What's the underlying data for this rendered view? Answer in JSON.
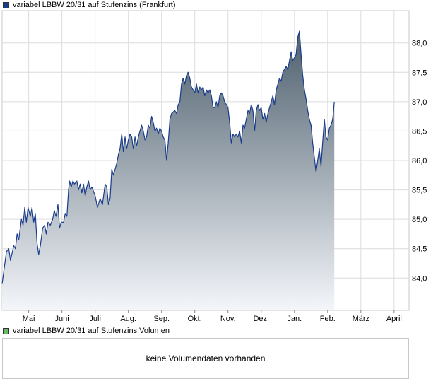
{
  "legend": {
    "price_label": "variabel LBBW 20/31 auf Stufenzins (Frankfurt)",
    "price_color": "#1a3c8c",
    "volume_label": "variabel LBBW 20/31 auf Stufenzins Volumen",
    "volume_color": "#66bb66"
  },
  "volume_panel": {
    "message": "keine Volumendaten vorhanden"
  },
  "chart_data": {
    "type": "area",
    "title": "variabel LBBW 20/31 auf Stufenzins (Frankfurt)",
    "y_ticks": [
      "84,0",
      "84,5",
      "85,0",
      "85,5",
      "86,0",
      "86,5",
      "87,0",
      "87,5",
      "88,0"
    ],
    "ylim": [
      83.45,
      88.55
    ],
    "x_ticks": [
      {
        "label": "Mai",
        "t": 0.5
      },
      {
        "label": "Juni",
        "t": 1.5
      },
      {
        "label": "Juli",
        "t": 2.5
      },
      {
        "label": "Aug.",
        "t": 3.5
      },
      {
        "label": "Sep.",
        "t": 4.5
      },
      {
        "label": "Okt.",
        "t": 5.5
      },
      {
        "label": "Nov.",
        "t": 6.5
      },
      {
        "label": "Dez.",
        "t": 7.5
      },
      {
        "label": "Jan.",
        "t": 8.5
      },
      {
        "label": "Feb.",
        "t": 9.5
      },
      {
        "label": "März",
        "t": 10.5
      },
      {
        "label": "April",
        "t": 11.5
      }
    ],
    "xlim": [
      -0.3,
      11.95
    ],
    "grid": true,
    "series": [
      {
        "name": "variabel LBBW 20/31 auf Stufenzins (Frankfurt)",
        "color": "#1a3c8c",
        "points": [
          [
            -0.3,
            83.9
          ],
          [
            -0.17,
            84.45
          ],
          [
            -0.1,
            84.5
          ],
          [
            -0.05,
            84.3
          ],
          [
            0.05,
            84.55
          ],
          [
            0.1,
            84.5
          ],
          [
            0.15,
            84.75
          ],
          [
            0.2,
            84.65
          ],
          [
            0.28,
            85.0
          ],
          [
            0.33,
            84.9
          ],
          [
            0.38,
            85.2
          ],
          [
            0.43,
            84.95
          ],
          [
            0.48,
            85.2
          ],
          [
            0.55,
            85.05
          ],
          [
            0.6,
            85.2
          ],
          [
            0.65,
            84.95
          ],
          [
            0.7,
            85.1
          ],
          [
            0.75,
            84.6
          ],
          [
            0.8,
            84.4
          ],
          [
            0.85,
            84.55
          ],
          [
            0.92,
            84.85
          ],
          [
            0.98,
            84.9
          ],
          [
            1.03,
            84.75
          ],
          [
            1.08,
            84.95
          ],
          [
            1.15,
            84.9
          ],
          [
            1.22,
            85.0
          ],
          [
            1.27,
            85.15
          ],
          [
            1.32,
            85.05
          ],
          [
            1.38,
            85.25
          ],
          [
            1.43,
            84.85
          ],
          [
            1.48,
            84.95
          ],
          [
            1.55,
            84.95
          ],
          [
            1.6,
            85.1
          ],
          [
            1.65,
            85.05
          ],
          [
            1.7,
            85.5
          ],
          [
            1.73,
            85.65
          ],
          [
            1.78,
            85.55
          ],
          [
            1.83,
            85.65
          ],
          [
            1.88,
            85.6
          ],
          [
            1.95,
            85.65
          ],
          [
            2.0,
            85.5
          ],
          [
            2.05,
            85.6
          ],
          [
            2.1,
            85.45
          ],
          [
            2.15,
            85.6
          ],
          [
            2.2,
            85.4
          ],
          [
            2.25,
            85.55
          ],
          [
            2.3,
            85.65
          ],
          [
            2.35,
            85.5
          ],
          [
            2.4,
            85.55
          ],
          [
            2.5,
            85.4
          ],
          [
            2.57,
            85.2
          ],
          [
            2.65,
            85.35
          ],
          [
            2.72,
            85.25
          ],
          [
            2.8,
            85.6
          ],
          [
            2.85,
            85.55
          ],
          [
            2.9,
            85.25
          ],
          [
            2.95,
            85.35
          ],
          [
            3.0,
            85.85
          ],
          [
            3.05,
            85.75
          ],
          [
            3.1,
            85.85
          ],
          [
            3.15,
            85.95
          ],
          [
            3.2,
            86.1
          ],
          [
            3.25,
            86.2
          ],
          [
            3.3,
            86.45
          ],
          [
            3.35,
            86.15
          ],
          [
            3.4,
            86.4
          ],
          [
            3.45,
            86.2
          ],
          [
            3.5,
            86.35
          ],
          [
            3.55,
            86.45
          ],
          [
            3.6,
            86.4
          ],
          [
            3.65,
            86.2
          ],
          [
            3.7,
            86.4
          ],
          [
            3.75,
            86.25
          ],
          [
            3.8,
            86.4
          ],
          [
            3.85,
            86.5
          ],
          [
            3.9,
            86.6
          ],
          [
            3.95,
            86.5
          ],
          [
            4.0,
            86.35
          ],
          [
            4.05,
            86.4
          ],
          [
            4.1,
            86.6
          ],
          [
            4.15,
            86.55
          ],
          [
            4.2,
            86.75
          ],
          [
            4.25,
            86.65
          ],
          [
            4.3,
            86.5
          ],
          [
            4.35,
            86.55
          ],
          [
            4.4,
            86.45
          ],
          [
            4.45,
            86.55
          ],
          [
            4.5,
            86.5
          ],
          [
            4.55,
            86.4
          ],
          [
            4.6,
            86.35
          ],
          [
            4.65,
            86.0
          ],
          [
            4.7,
            86.3
          ],
          [
            4.75,
            86.7
          ],
          [
            4.8,
            86.8
          ],
          [
            4.9,
            86.85
          ],
          [
            4.95,
            86.8
          ],
          [
            5.0,
            86.95
          ],
          [
            5.05,
            87.0
          ],
          [
            5.1,
            87.3
          ],
          [
            5.15,
            87.4
          ],
          [
            5.2,
            87.3
          ],
          [
            5.25,
            87.45
          ],
          [
            5.3,
            87.5
          ],
          [
            5.35,
            87.4
          ],
          [
            5.4,
            87.25
          ],
          [
            5.45,
            87.2
          ],
          [
            5.5,
            87.15
          ],
          [
            5.55,
            87.3
          ],
          [
            5.6,
            87.15
          ],
          [
            5.65,
            87.25
          ],
          [
            5.7,
            87.2
          ],
          [
            5.75,
            87.25
          ],
          [
            5.8,
            87.1
          ],
          [
            5.85,
            87.2
          ],
          [
            5.9,
            87.15
          ],
          [
            5.95,
            87.2
          ],
          [
            6.0,
            87.1
          ],
          [
            6.05,
            86.9
          ],
          [
            6.1,
            86.9
          ],
          [
            6.15,
            87.0
          ],
          [
            6.2,
            86.9
          ],
          [
            6.25,
            87.1
          ],
          [
            6.3,
            87.15
          ],
          [
            6.35,
            87.1
          ],
          [
            6.4,
            87.0
          ],
          [
            6.45,
            86.95
          ],
          [
            6.5,
            86.9
          ],
          [
            6.55,
            86.65
          ],
          [
            6.6,
            86.3
          ],
          [
            6.65,
            86.45
          ],
          [
            6.7,
            86.4
          ],
          [
            6.75,
            86.45
          ],
          [
            6.8,
            86.4
          ],
          [
            6.85,
            86.5
          ],
          [
            6.9,
            86.3
          ],
          [
            6.95,
            86.6
          ],
          [
            7.0,
            86.55
          ],
          [
            7.05,
            86.7
          ],
          [
            7.1,
            86.85
          ],
          [
            7.15,
            86.8
          ],
          [
            7.2,
            86.95
          ],
          [
            7.25,
            86.85
          ],
          [
            7.3,
            86.5
          ],
          [
            7.35,
            86.85
          ],
          [
            7.4,
            86.95
          ],
          [
            7.45,
            86.85
          ],
          [
            7.5,
            86.9
          ],
          [
            7.55,
            86.7
          ],
          [
            7.6,
            86.8
          ],
          [
            7.65,
            86.65
          ],
          [
            7.7,
            86.8
          ],
          [
            7.75,
            86.9
          ],
          [
            7.8,
            87.0
          ],
          [
            7.85,
            87.1
          ],
          [
            7.9,
            86.95
          ],
          [
            7.95,
            87.2
          ],
          [
            8.0,
            87.3
          ],
          [
            8.05,
            87.4
          ],
          [
            8.1,
            87.35
          ],
          [
            8.15,
            87.5
          ],
          [
            8.2,
            87.55
          ],
          [
            8.25,
            87.6
          ],
          [
            8.3,
            87.55
          ],
          [
            8.35,
            87.7
          ],
          [
            8.4,
            87.85
          ],
          [
            8.45,
            87.7
          ],
          [
            8.5,
            87.75
          ],
          [
            8.55,
            87.8
          ],
          [
            8.6,
            88.1
          ],
          [
            8.65,
            88.2
          ],
          [
            8.7,
            87.8
          ],
          [
            8.75,
            87.45
          ],
          [
            8.8,
            87.2
          ],
          [
            8.85,
            87.05
          ],
          [
            8.9,
            86.85
          ],
          [
            8.95,
            86.7
          ],
          [
            9.0,
            86.6
          ],
          [
            9.05,
            86.3
          ],
          [
            9.1,
            86.05
          ],
          [
            9.15,
            85.8
          ],
          [
            9.2,
            86.0
          ],
          [
            9.25,
            86.2
          ],
          [
            9.3,
            85.9
          ],
          [
            9.35,
            86.3
          ],
          [
            9.4,
            86.7
          ],
          [
            9.45,
            86.4
          ],
          [
            9.5,
            86.35
          ],
          [
            9.55,
            86.55
          ],
          [
            9.6,
            86.6
          ],
          [
            9.65,
            86.7
          ],
          [
            9.7,
            87.0
          ]
        ]
      }
    ]
  }
}
